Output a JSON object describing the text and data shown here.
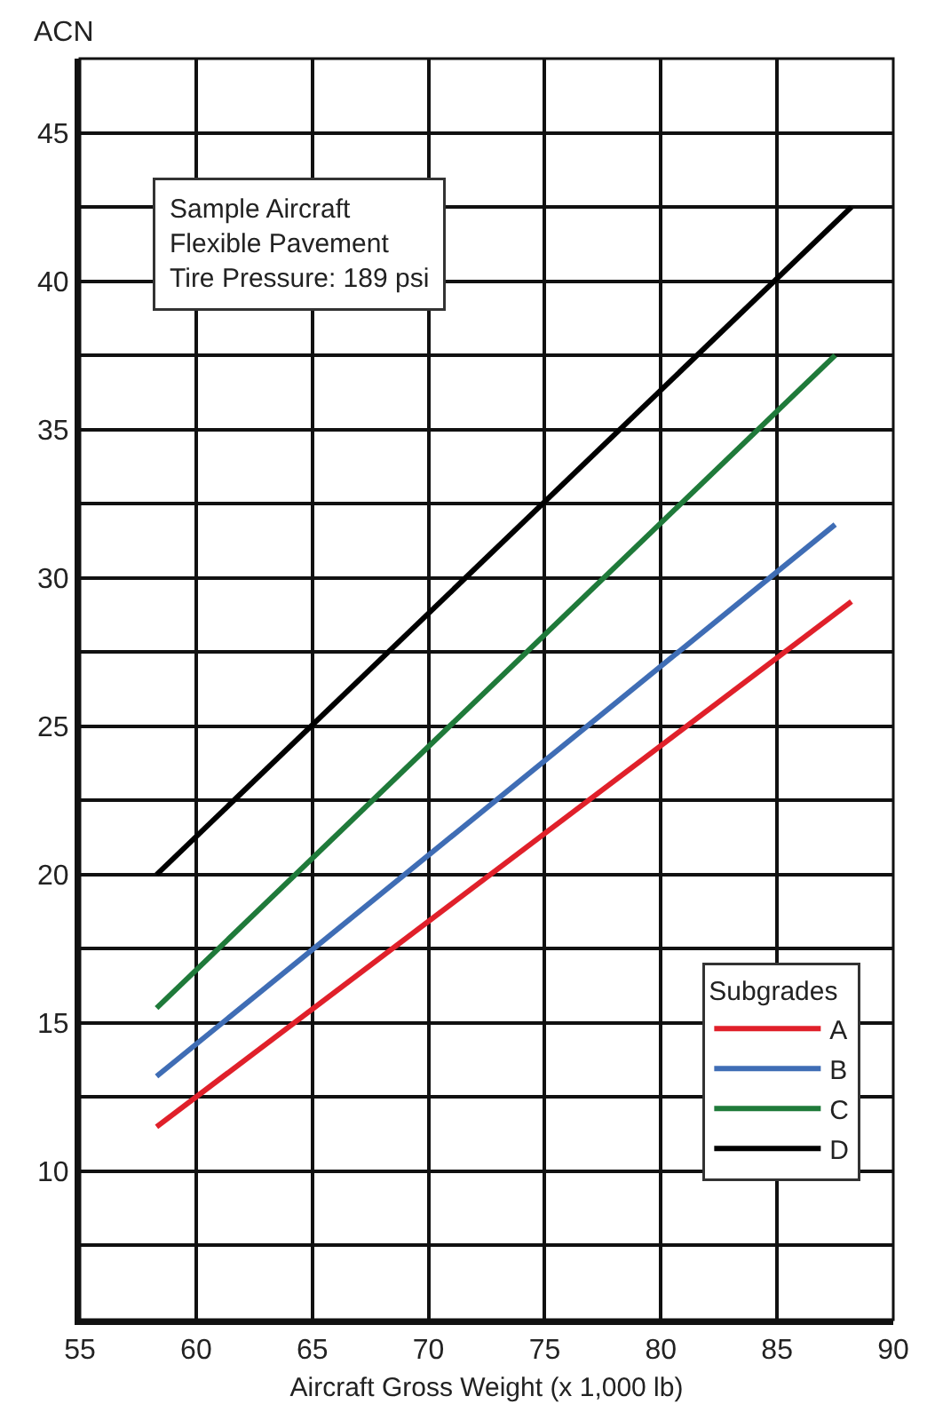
{
  "chart_data": {
    "type": "line",
    "xlabel": "Aircraft Gross Weight (x 1,000 lb)",
    "ylabel": "ACN",
    "legend_title": "Subgrades",
    "legend": "bottom right",
    "grid": true,
    "marker": "none",
    "line_style": "solid",
    "annotations": [
      "Sample Aircraft\nFlexible Pavement\nTire Pressure: 189 psi"
    ],
    "xlim": [
      55,
      90
    ],
    "xticks": [
      55,
      60,
      65,
      70,
      75,
      80,
      85,
      90
    ],
    "ylim": [
      5,
      47.5
    ],
    "yticks": [
      {
        "value": 7.5,
        "label": null
      },
      10,
      {
        "value": 12.5,
        "label": null
      },
      15,
      {
        "value": 17.5,
        "label": null
      },
      20,
      {
        "value": 22.5,
        "label": null
      },
      25,
      {
        "value": 27.5,
        "label": null
      },
      30,
      {
        "value": 32.5,
        "label": null
      },
      35,
      {
        "value": 37.5,
        "label": null
      },
      40,
      {
        "value": 42.5,
        "label": null
      },
      45
    ],
    "series": [
      {
        "name": "A",
        "color": "#e0202a",
        "x": [
          58.3,
          88.2
        ],
        "values": [
          11.5,
          29.2
        ]
      },
      {
        "name": "B",
        "color": "#3f6db5",
        "x": [
          58.3,
          87.5
        ],
        "values": [
          13.2,
          31.8
        ]
      },
      {
        "name": "C",
        "color": "#1f7a3a",
        "x": [
          58.3,
          87.5
        ],
        "values": [
          15.5,
          37.5
        ]
      },
      {
        "name": "D",
        "color": "#000000",
        "x": [
          58.3,
          88.2
        ],
        "values": [
          20,
          42.5
        ]
      }
    ]
  }
}
